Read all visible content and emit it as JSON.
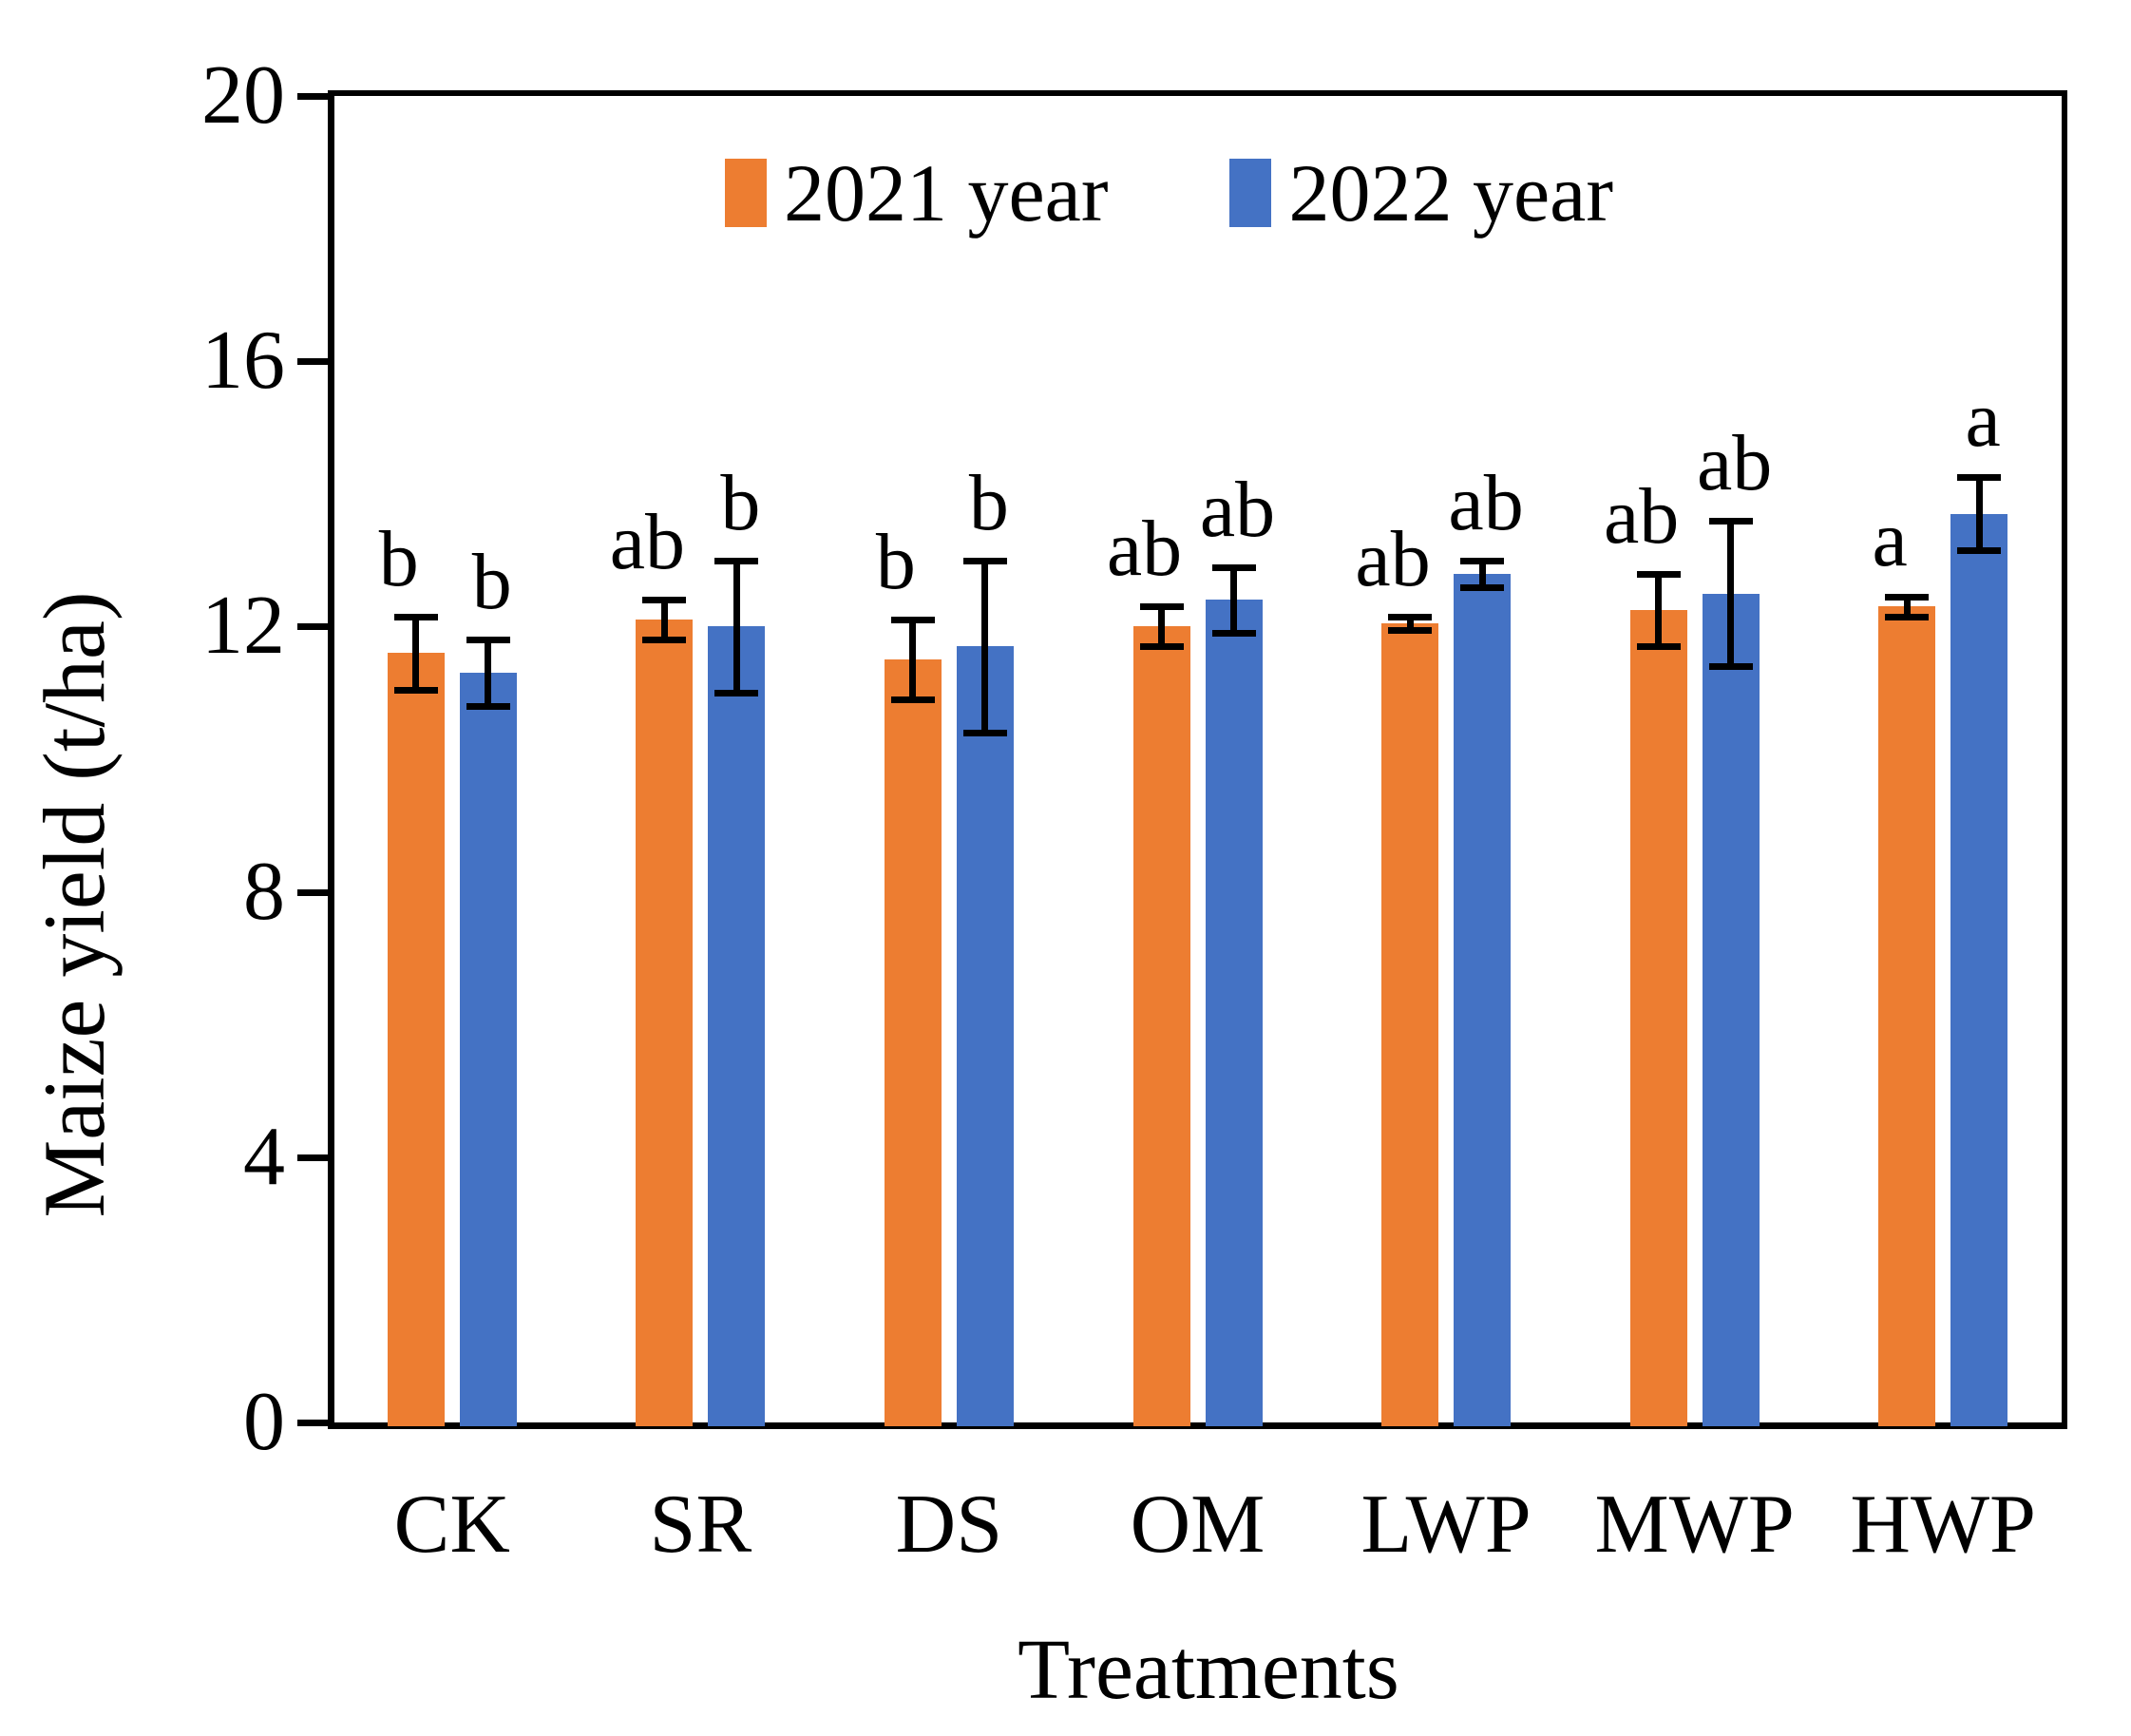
{
  "chart_data": {
    "type": "bar",
    "title": "",
    "xlabel": "Treatments",
    "ylabel": "Maize yield (t/ha)",
    "ylim": [
      0,
      20
    ],
    "yticks": [
      0,
      4,
      8,
      12,
      16,
      20
    ],
    "categories": [
      "CK",
      "SR",
      "DS",
      "OM",
      "LWP",
      "MWP",
      "HWP"
    ],
    "series": [
      {
        "name": "2021 year",
        "color": "#ED7D31",
        "values": [
          11.6,
          12.1,
          11.5,
          12.0,
          12.05,
          12.25,
          12.3
        ],
        "errors": [
          0.55,
          0.3,
          0.6,
          0.3,
          0.1,
          0.55,
          0.15
        ],
        "letters": [
          "b",
          "ab",
          "b",
          "ab",
          "ab",
          "ab",
          "a"
        ]
      },
      {
        "name": "2022 year",
        "color": "#4472C4",
        "values": [
          11.3,
          12.0,
          11.7,
          12.4,
          12.8,
          12.5,
          13.7
        ],
        "errors": [
          0.5,
          1.0,
          1.3,
          0.5,
          0.2,
          1.1,
          0.55
        ],
        "letters": [
          "b",
          "b",
          "b",
          "ab",
          "ab",
          "ab",
          "a"
        ]
      }
    ],
    "legend_position": "top-center",
    "grid": false,
    "axis_color": "#000000",
    "error_bar_color": "#000000",
    "background_color": "#FFFFFF"
  }
}
